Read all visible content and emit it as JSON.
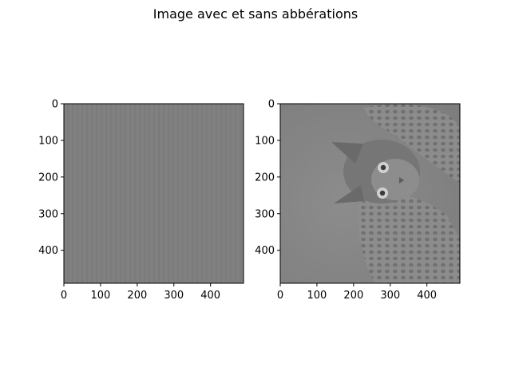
{
  "figure": {
    "title": "Image avec et sans abbérations"
  },
  "chart_data": [
    {
      "type": "heatmap",
      "title": "",
      "content": "nearly uniform gray image (aberrated)",
      "image_size": [
        490,
        490
      ],
      "xlim": [
        0,
        490
      ],
      "ylim": [
        490,
        0
      ],
      "xticks": [
        0,
        100,
        200,
        300,
        400
      ],
      "yticks": [
        0,
        100,
        200,
        300,
        400
      ],
      "base_color": "#7f7f7f",
      "grid": false
    },
    {
      "type": "heatmap",
      "title": "",
      "content": "grayscale photo of a kitten (rotated)",
      "image_size": [
        490,
        490
      ],
      "xlim": [
        0,
        490
      ],
      "ylim": [
        490,
        0
      ],
      "xticks": [
        0,
        100,
        200,
        300,
        400
      ],
      "yticks": [
        0,
        100,
        200,
        300,
        400
      ],
      "base_color": "#8a8a8a",
      "grid": false
    }
  ]
}
